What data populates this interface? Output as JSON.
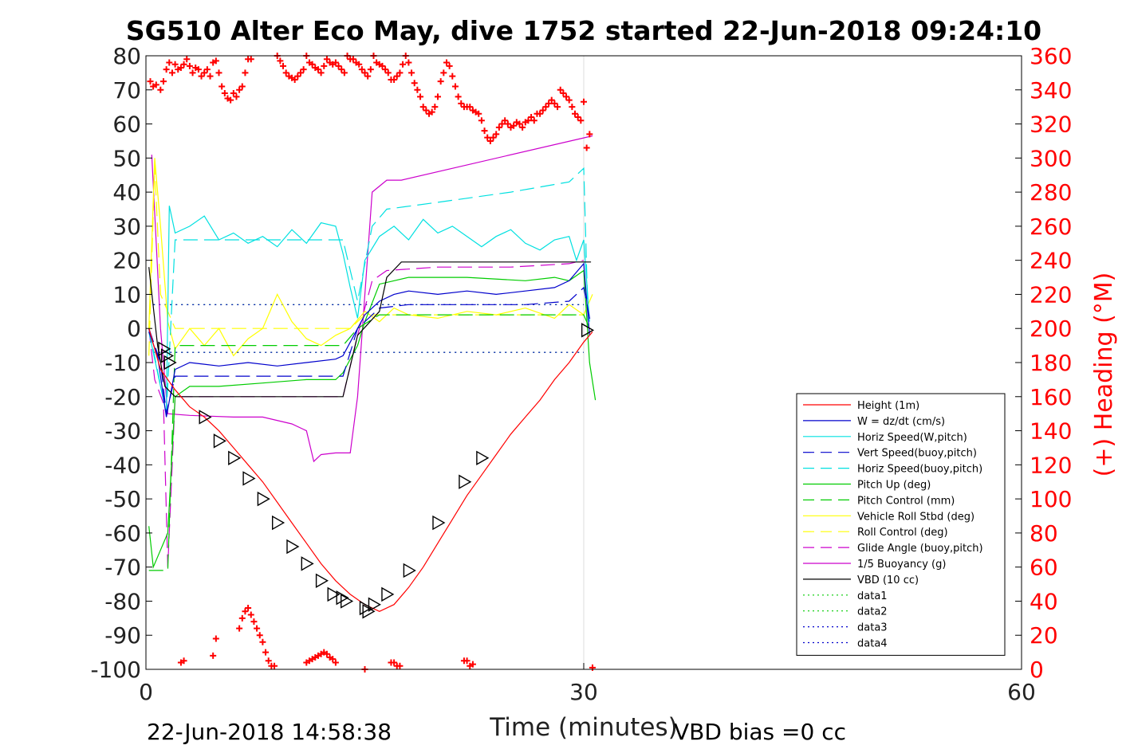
{
  "chart_data": {
    "type": "line",
    "title": "SG510 Alter Eco May, dive 1752 started 22-Jun-2018 09:24:10",
    "xlabel": "Time (minutes)",
    "ylabel_right": "(+) Heading (°M)",
    "footer_left": "22-Jun-2018 14:58:38",
    "footer_right": "VBD bias =0 cc",
    "xlim": [
      0,
      60
    ],
    "ylim": [
      -100,
      80
    ],
    "y2lim": [
      0,
      360
    ],
    "xticks": [
      "0",
      "30",
      "60"
    ],
    "yticks": [
      "80",
      "70",
      "60",
      "50",
      "40",
      "30",
      "20",
      "10",
      "0",
      "-10",
      "-20",
      "-30",
      "-40",
      "-50",
      "-60",
      "-70",
      "-80",
      "-90",
      "-100"
    ],
    "y2ticks": [
      "360",
      "340",
      "320",
      "300",
      "280",
      "260",
      "240",
      "220",
      "200",
      "180",
      "160",
      "140",
      "120",
      "100",
      "80",
      "60",
      "40",
      "20",
      "0"
    ],
    "colors": {
      "height": "#ff0000",
      "w": "#0000cc",
      "horiz_speed_w": "#00e0e0",
      "vert_speed_buoy": "#0000cc",
      "horiz_speed_buoy": "#00e0e0",
      "pitch_up": "#00cc00",
      "pitch_control": "#00cc00",
      "roll": "#ffff00",
      "roll_control": "#ffff00",
      "glide_angle": "#cc00cc",
      "buoyancy": "#cc00cc",
      "vbd": "#000000",
      "heading": "#ff0000"
    },
    "legend": [
      {
        "name": "Height (1m)",
        "color": "#ff0000",
        "dash": "solid"
      },
      {
        "name": "W = dz/dt (cm/s)",
        "color": "#0000cc",
        "dash": "solid"
      },
      {
        "name": "Horiz Speed(W,pitch)",
        "color": "#00e0e0",
        "dash": "solid"
      },
      {
        "name": "Vert Speed(buoy,pitch)",
        "color": "#0000cc",
        "dash": "dashed"
      },
      {
        "name": "Horiz Speed(buoy,pitch)",
        "color": "#00e0e0",
        "dash": "dashed"
      },
      {
        "name": "Pitch Up (deg)",
        "color": "#00cc00",
        "dash": "solid"
      },
      {
        "name": "Pitch Control (mm)",
        "color": "#00cc00",
        "dash": "dashed"
      },
      {
        "name": "Vehicle Roll Stbd (deg)",
        "color": "#ffff00",
        "dash": "solid"
      },
      {
        "name": "Roll Control (deg)",
        "color": "#ffff00",
        "dash": "dashed"
      },
      {
        "name": "Glide Angle (buoy,pitch)",
        "color": "#cc00cc",
        "dash": "dashed"
      },
      {
        "name": "1/5 Buoyancy (g)",
        "color": "#cc00cc",
        "dash": "solid"
      },
      {
        "name": "VBD (10 cc)",
        "color": "#000000",
        "dash": "solid"
      },
      {
        "name": "data1",
        "color": "#00cc00",
        "dash": "dotted"
      },
      {
        "name": "data2",
        "color": "#00cc00",
        "dash": "dotted"
      },
      {
        "name": "data3",
        "color": "#0000cc",
        "dash": "dotted"
      },
      {
        "name": "data4",
        "color": "#0000cc",
        "dash": "dotted"
      }
    ],
    "series": [
      {
        "key": "height",
        "axis": "left",
        "dash": "solid",
        "x": [
          0.2,
          1,
          2,
          3,
          4,
          5,
          6,
          7,
          8,
          9,
          10,
          11,
          12,
          13,
          14,
          15,
          16,
          17,
          18,
          19,
          20,
          21,
          22,
          23,
          24,
          25,
          26,
          27,
          28,
          29,
          30,
          30.6
        ],
        "y": [
          0,
          -12,
          -18,
          -23,
          -26,
          -30,
          -35,
          -40,
          -45,
          -51,
          -57,
          -63,
          -69,
          -74,
          -78,
          -81,
          -83,
          -81,
          -76,
          -70,
          -63,
          -56,
          -49,
          -43,
          -37,
          -31,
          -26,
          -21,
          -15,
          -10,
          -4,
          -1
        ]
      },
      {
        "key": "vbd",
        "axis": "left",
        "dash": "solid",
        "x": [
          0.2,
          0.8,
          1.3,
          2,
          4,
          8,
          12,
          13.5,
          14.5,
          16,
          16.5,
          17.5,
          20,
          25,
          30.5
        ],
        "y": [
          18,
          -5,
          -17,
          -20,
          -20,
          -20,
          -20,
          -20,
          -2,
          5,
          15,
          19.5,
          19.5,
          19.5,
          19.5
        ]
      },
      {
        "key": "w",
        "axis": "left",
        "dash": "solid",
        "x": [
          0.2,
          0.8,
          1.4,
          2,
          3,
          5,
          7,
          9,
          11,
          13,
          13.5,
          14.5,
          15,
          16,
          17,
          18,
          20,
          22,
          24,
          26,
          28,
          29,
          30,
          30.4
        ],
        "y": [
          -1,
          -8,
          -26,
          -12,
          -10,
          -11,
          -10,
          -11,
          -10,
          -9,
          -8,
          0,
          4,
          8,
          10,
          11,
          10,
          11,
          10,
          11,
          12,
          14,
          19,
          -2
        ]
      },
      {
        "key": "vert_speed_buoy",
        "axis": "left",
        "dash": "dashed",
        "x": [
          0.2,
          1,
          1.4,
          2,
          4,
          8,
          12,
          13.5,
          14.5,
          16,
          18,
          22,
          26,
          29,
          30,
          30.5
        ],
        "y": [
          0,
          -10,
          -25,
          -14,
          -14,
          -14,
          -14,
          -14,
          0,
          6,
          7,
          7,
          7,
          8,
          12,
          1
        ]
      },
      {
        "key": "horiz_speed_w",
        "axis": "left",
        "dash": "solid",
        "x": [
          0.2,
          1.4,
          1.6,
          2,
          3,
          4,
          5,
          6,
          7,
          8,
          9,
          10,
          11,
          12,
          13,
          13.5,
          14,
          14.5,
          15,
          16,
          17,
          18,
          19,
          20,
          21,
          22,
          23,
          24,
          25,
          26,
          27,
          28,
          29,
          29.5,
          30,
          30.4
        ],
        "y": [
          -1,
          -25,
          36,
          28,
          30,
          33,
          26,
          28,
          25,
          27,
          24,
          29,
          25,
          31,
          30,
          22,
          12,
          3,
          20,
          27,
          30,
          26,
          32,
          28,
          30,
          27,
          24,
          27,
          29,
          25,
          23,
          26,
          27,
          20,
          26,
          2
        ]
      },
      {
        "key": "horiz_speed_buoy",
        "axis": "left",
        "dash": "dashed",
        "x": [
          0.2,
          1.4,
          2,
          4,
          8,
          12,
          13.5,
          14.5,
          15.5,
          16.5,
          20,
          25,
          29,
          30,
          30.3
        ],
        "y": [
          0,
          -25,
          26,
          26,
          26,
          26,
          26,
          8,
          30,
          35,
          37,
          40,
          43,
          47,
          2
        ]
      },
      {
        "key": "pitch_up",
        "axis": "left",
        "dash": "solid",
        "x": [
          0.2,
          0.5,
          1.5,
          2,
          3,
          5,
          8,
          11,
          13,
          13.5,
          14.5,
          15,
          16,
          18,
          22,
          26,
          28,
          29,
          30,
          30.4,
          30.8
        ],
        "y": [
          -58,
          -70,
          -60,
          -20,
          -17,
          -17,
          -16,
          -15,
          -15,
          -13,
          -5,
          2,
          13,
          15,
          15,
          14,
          15,
          14,
          17,
          -10,
          -21
        ]
      },
      {
        "key": "pitch_control",
        "axis": "left",
        "dash": "dashed",
        "x": [
          0.2,
          0.5,
          1.5,
          2,
          4,
          8,
          12,
          13.5,
          14.5,
          16,
          20,
          25,
          30,
          30.4
        ],
        "y": [
          -71,
          -71,
          -71,
          -5,
          -5,
          -5,
          -5,
          -5,
          0,
          4,
          4,
          4,
          4,
          0
        ]
      },
      {
        "key": "roll",
        "axis": "left",
        "dash": "solid",
        "x": [
          0.2,
          0.6,
          1,
          1.5,
          2,
          3,
          4,
          5,
          6,
          7,
          8,
          9,
          10,
          11,
          12,
          13,
          14,
          15,
          16,
          17,
          18,
          20,
          22,
          24,
          26,
          28,
          29,
          30,
          30.6
        ],
        "y": [
          0,
          50,
          30,
          2,
          -6,
          0,
          -5,
          0,
          -8,
          -3,
          0,
          10,
          2,
          -3,
          -5,
          -2,
          0,
          5,
          2,
          6,
          4,
          3,
          5,
          4,
          6,
          3,
          7,
          4,
          10
        ]
      },
      {
        "key": "roll_control",
        "axis": "left",
        "dash": "dashed",
        "x": [
          0.2,
          0.6,
          1,
          2,
          4,
          8,
          12,
          14,
          15,
          16,
          20,
          25,
          30
        ],
        "y": [
          -8,
          48,
          10,
          0,
          0,
          0,
          0,
          0,
          4,
          4,
          4,
          4,
          4
        ]
      },
      {
        "key": "glide_angle",
        "axis": "left",
        "dash": "dashed",
        "x": [
          0.2,
          0.6,
          1.2,
          1.5,
          2,
          4,
          8,
          12,
          13.5,
          14.5,
          15.5,
          16.5,
          20,
          25,
          29,
          30
        ],
        "y": [
          0,
          -15,
          -22,
          -70,
          -20,
          -20,
          -20,
          -20,
          -20,
          -2,
          14,
          17,
          18,
          18,
          19,
          20
        ]
      },
      {
        "key": "buoyancy",
        "axis": "left",
        "dash": "solid",
        "x": [
          0.4,
          1,
          1.5,
          3,
          6,
          8,
          10,
          11,
          11.5,
          12,
          13,
          14,
          14.5,
          15.5,
          16.5,
          17.5,
          30.6
        ],
        "y": [
          51,
          0,
          -25,
          -25.5,
          -26,
          -26,
          -28,
          -30,
          -39,
          -37,
          -36.5,
          -36.5,
          -20,
          40,
          43.5,
          43.5,
          56.5
        ]
      },
      {
        "key": "data1",
        "axis": "left",
        "dash": "dotted",
        "x": [
          0.5,
          30
        ],
        "y": [
          7,
          7
        ]
      },
      {
        "key": "data2",
        "axis": "left",
        "dash": "dotted",
        "x": [
          0.5,
          30
        ],
        "y": [
          -7,
          -7
        ]
      },
      {
        "key": "data3",
        "axis": "left",
        "dash": "dotted",
        "x": [
          0.5,
          30
        ],
        "y": [
          7,
          7
        ]
      },
      {
        "key": "data4",
        "axis": "left",
        "dash": "dotted",
        "x": [
          0.5,
          30
        ],
        "y": [
          -7,
          -7
        ]
      }
    ],
    "vbd_markers": {
      "x": [
        1.2,
        1.4,
        1.6,
        4,
        5,
        6,
        7,
        8,
        9,
        10,
        11,
        12,
        12.8,
        13.4,
        13.7,
        15,
        15.2,
        15.6,
        16.5,
        18,
        20,
        21.8,
        23,
        30.2
      ],
      "y": [
        -6,
        -8,
        -10,
        -26,
        -33,
        -38,
        -44,
        -50,
        -57,
        -64,
        -69,
        -74,
        -78,
        -79,
        -80,
        -82,
        -83,
        -81,
        -78,
        -71,
        -57,
        -45,
        -38,
        -0.5
      ]
    },
    "heading_points": {
      "x": [
        0.3,
        0.5,
        0.7,
        1,
        1.2,
        1.4,
        1.6,
        1.8,
        2,
        2.2,
        2.4,
        2.6,
        2.8,
        3,
        3.2,
        3.4,
        3.6,
        3.8,
        4,
        4.2,
        4.4,
        4.6,
        4.8,
        5,
        5.2,
        5.4,
        5.6,
        5.8,
        6,
        6.2,
        6.4,
        6.6,
        6.8,
        7,
        7.2,
        9,
        9.2,
        9.4,
        9.6,
        9.8,
        10,
        10.2,
        10.4,
        10.6,
        10.8,
        11,
        11.2,
        11.4,
        11.6,
        11.8,
        12,
        12.2,
        12.4,
        12.6,
        12.8,
        13,
        13.2,
        13.4,
        13.6,
        13.8,
        14,
        14.2,
        14.4,
        14.6,
        14.8,
        15,
        15.2,
        15.4,
        15.6,
        15.8,
        16,
        16.2,
        16.4,
        16.6,
        16.8,
        17,
        17.2,
        17.4,
        17.6,
        17.8,
        18,
        18.2,
        18.4,
        18.6,
        18.8,
        19,
        19.2,
        19.4,
        19.6,
        19.8,
        20,
        20.2,
        20.4,
        20.6,
        20.8,
        21,
        21.2,
        21.4,
        21.6,
        21.8,
        22,
        22.2,
        22.4,
        22.6,
        22.8,
        23,
        23.2,
        23.4,
        23.6,
        23.8,
        24,
        24.2,
        24.4,
        24.6,
        24.8,
        25,
        25.2,
        25.4,
        25.6,
        25.8,
        26,
        26.2,
        26.4,
        26.6,
        26.8,
        27,
        27.2,
        27.4,
        27.6,
        27.8,
        28,
        28.2,
        28.4,
        28.6,
        28.8,
        29,
        29.2,
        29.4,
        29.6,
        29.8,
        30,
        30.2,
        30.4,
        30.6,
        2.4,
        2.6,
        4.6,
        4.8,
        6.4,
        6.6,
        6.8,
        7,
        7.2,
        7.4,
        7.6,
        7.8,
        8,
        8.2,
        8.4,
        8.6,
        8.8,
        11,
        11.2,
        11.4,
        11.6,
        11.8,
        12,
        12.2,
        12.4,
        12.6,
        12.8,
        13,
        16.8,
        17,
        17.2,
        17.4,
        21.8,
        22,
        22.2,
        22.4,
        15
      ],
      "y": [
        345,
        342,
        343,
        340,
        345,
        352,
        356,
        350,
        355,
        352,
        353,
        355,
        358,
        354,
        350,
        353,
        352,
        348,
        350,
        352,
        348,
        356,
        357,
        350,
        342,
        338,
        335,
        334,
        338,
        336,
        340,
        342,
        350,
        358,
        358,
        360,
        357,
        354,
        350,
        348,
        347,
        346,
        348,
        350,
        352,
        360,
        356,
        355,
        353,
        352,
        350,
        354,
        358,
        356,
        355,
        356,
        354,
        352,
        350,
        360,
        358,
        358,
        356,
        355,
        352,
        350,
        348,
        352,
        360,
        356,
        355,
        354,
        352,
        350,
        346,
        346,
        348,
        350,
        355,
        360,
        356,
        350,
        344,
        340,
        336,
        330,
        328,
        326,
        327,
        330,
        336,
        345,
        350,
        356,
        354,
        348,
        342,
        336,
        332,
        330,
        330,
        330,
        328,
        327,
        326,
        322,
        316,
        312,
        310,
        312,
        314,
        318,
        320,
        322,
        320,
        318,
        319,
        321,
        320,
        318,
        321,
        322,
        324,
        322,
        326,
        326,
        328,
        330,
        332,
        334,
        332,
        330,
        340,
        338,
        336,
        334,
        330,
        326,
        324,
        322,
        333,
        306,
        314,
        1,
        4,
        5,
        8,
        18,
        24,
        30,
        34,
        36,
        32,
        28,
        24,
        20,
        16,
        10,
        5,
        2,
        2,
        4,
        5,
        6,
        7,
        8,
        9,
        10,
        9,
        7,
        6,
        4,
        4,
        4,
        2,
        2,
        5,
        5,
        2,
        3,
        0
      ]
    }
  }
}
